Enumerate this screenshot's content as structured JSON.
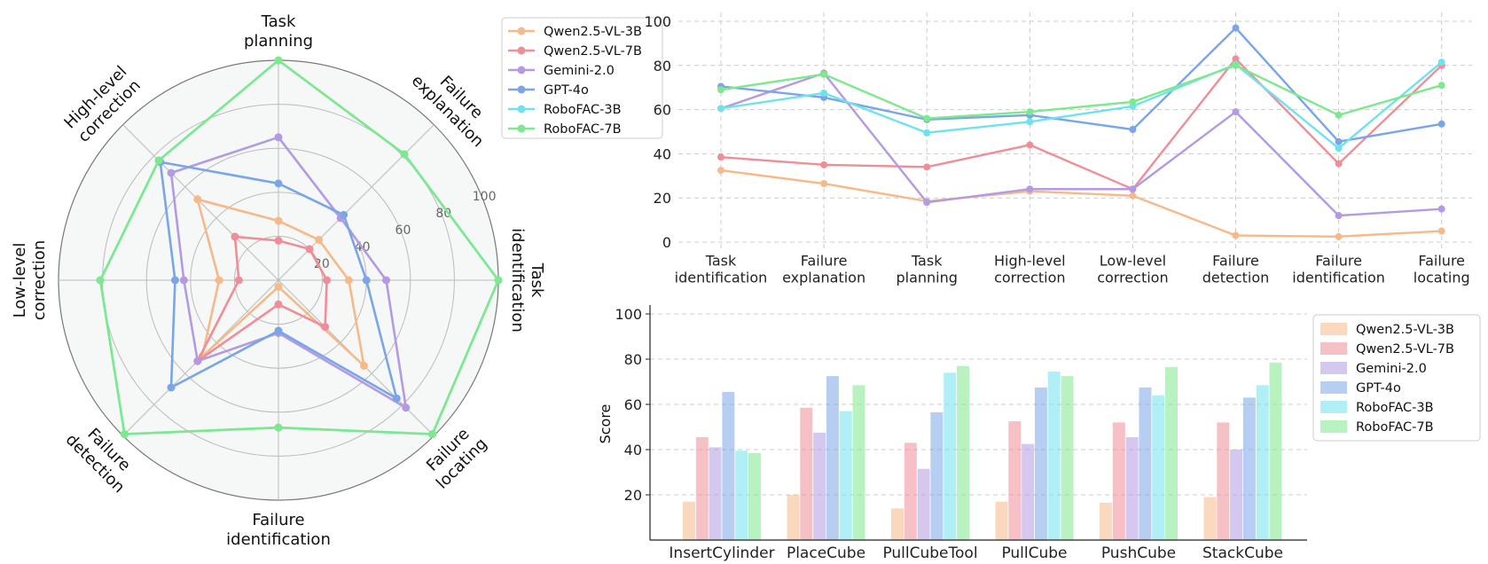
{
  "colors": {
    "Qwen2.5-VL-3B": "#f5b98a",
    "Qwen2.5-VL-7B": "#ef8e98",
    "Gemini-2.0": "#b39ae2",
    "GPT-4o": "#7aa5e6",
    "RoboFAC-3B": "#6fe2ee",
    "RoboFAC-7B": "#7ee88e"
  },
  "chart_data": [
    {
      "type": "radar",
      "axes": [
        [
          "Task",
          "planning"
        ],
        [
          "Failure",
          "explanation"
        ],
        [
          "Task",
          "identification"
        ],
        [
          "Failure",
          "locating"
        ],
        [
          "Failure",
          "identification"
        ],
        [
          "Failure",
          "detection"
        ],
        [
          "Low-level",
          "correction"
        ],
        [
          "High-level",
          "correction"
        ]
      ],
      "rlim": [
        0,
        100
      ],
      "rticks": [
        "20",
        "40",
        "60",
        "80",
        "100"
      ],
      "legend": "upper-right outside",
      "series": [
        {
          "name": "Qwen2.5-VL-3B",
          "values": [
            27,
            26,
            32,
            55,
            3,
            49,
            27,
            52
          ]
        },
        {
          "name": "Qwen2.5-VL-7B",
          "values": [
            18,
            20,
            22,
            30,
            11,
            52,
            18,
            28
          ]
        },
        {
          "name": "Gemini-2.0",
          "values": [
            65,
            40,
            49,
            82,
            24,
            52,
            43,
            69
          ]
        },
        {
          "name": "GPT-4o",
          "values": [
            44,
            42,
            40,
            76,
            23,
            69,
            47,
            76
          ]
        },
        {
          "name": "RoboFAC-3B",
          "values": [
            100,
            81,
            100,
            99,
            67,
            99,
            81,
            77
          ]
        },
        {
          "name": "RoboFAC-7B",
          "values": [
            100,
            81,
            100,
            99,
            67,
            99,
            81,
            77
          ]
        }
      ]
    },
    {
      "type": "line",
      "categories": [
        [
          "Task",
          "identification"
        ],
        [
          "Failure",
          "explanation"
        ],
        [
          "Task",
          "planning"
        ],
        [
          "High-level",
          "correction"
        ],
        [
          "Low-level",
          "correction"
        ],
        [
          "Failure",
          "detection"
        ],
        [
          "Failure",
          "identification"
        ],
        [
          "Failure",
          "locating"
        ]
      ],
      "ylim": [
        0,
        100
      ],
      "yticks": [
        "0",
        "20",
        "40",
        "60",
        "80",
        "100"
      ],
      "grid": true,
      "series": [
        {
          "name": "Qwen2.5-VL-3B",
          "values": [
            32.5,
            26.5,
            18.5,
            23,
            21,
            3,
            2.5,
            5
          ]
        },
        {
          "name": "Qwen2.5-VL-7B",
          "values": [
            38.5,
            35,
            34,
            44,
            24,
            83,
            35.5,
            80
          ]
        },
        {
          "name": "Gemini-2.0",
          "values": [
            60.5,
            76.5,
            18,
            24,
            24,
            59,
            12,
            15
          ]
        },
        {
          "name": "GPT-4o",
          "values": [
            70.5,
            65.5,
            55.5,
            57.5,
            51,
            97,
            45.5,
            53.5
          ]
        },
        {
          "name": "RoboFAC-3B",
          "values": [
            60.5,
            67.5,
            49.5,
            54.5,
            61.5,
            80.5,
            42.5,
            81.5
          ]
        },
        {
          "name": "RoboFAC-7B",
          "values": [
            69,
            76,
            56,
            59,
            63.5,
            80,
            57.5,
            71
          ]
        }
      ]
    },
    {
      "type": "bar",
      "categories": [
        "InsertCylinder",
        "PlaceCube",
        "PullCubeTool",
        "PullCube",
        "PushCube",
        "StackCube"
      ],
      "ylabel": "Score",
      "ylim": [
        0,
        100
      ],
      "yticks": [
        "20",
        "40",
        "60",
        "80",
        "100"
      ],
      "grid": true,
      "legend": "upper-right outside",
      "series": [
        {
          "name": "Qwen2.5-VL-3B",
          "values": [
            17,
            20,
            14,
            17,
            16.5,
            19
          ]
        },
        {
          "name": "Qwen2.5-VL-7B",
          "values": [
            45.5,
            58.5,
            43,
            52.5,
            52,
            52
          ]
        },
        {
          "name": "Gemini-2.0",
          "values": [
            41,
            47.5,
            31.5,
            42.5,
            45.5,
            40
          ]
        },
        {
          "name": "GPT-4o",
          "values": [
            65.5,
            72.5,
            56.5,
            67.5,
            67.5,
            63
          ]
        },
        {
          "name": "RoboFAC-3B",
          "values": [
            39.5,
            57,
            74,
            74.5,
            64,
            68.5
          ]
        },
        {
          "name": "RoboFAC-7B",
          "values": [
            38.5,
            68.5,
            77,
            72.5,
            76.5,
            78.5
          ]
        }
      ]
    }
  ]
}
